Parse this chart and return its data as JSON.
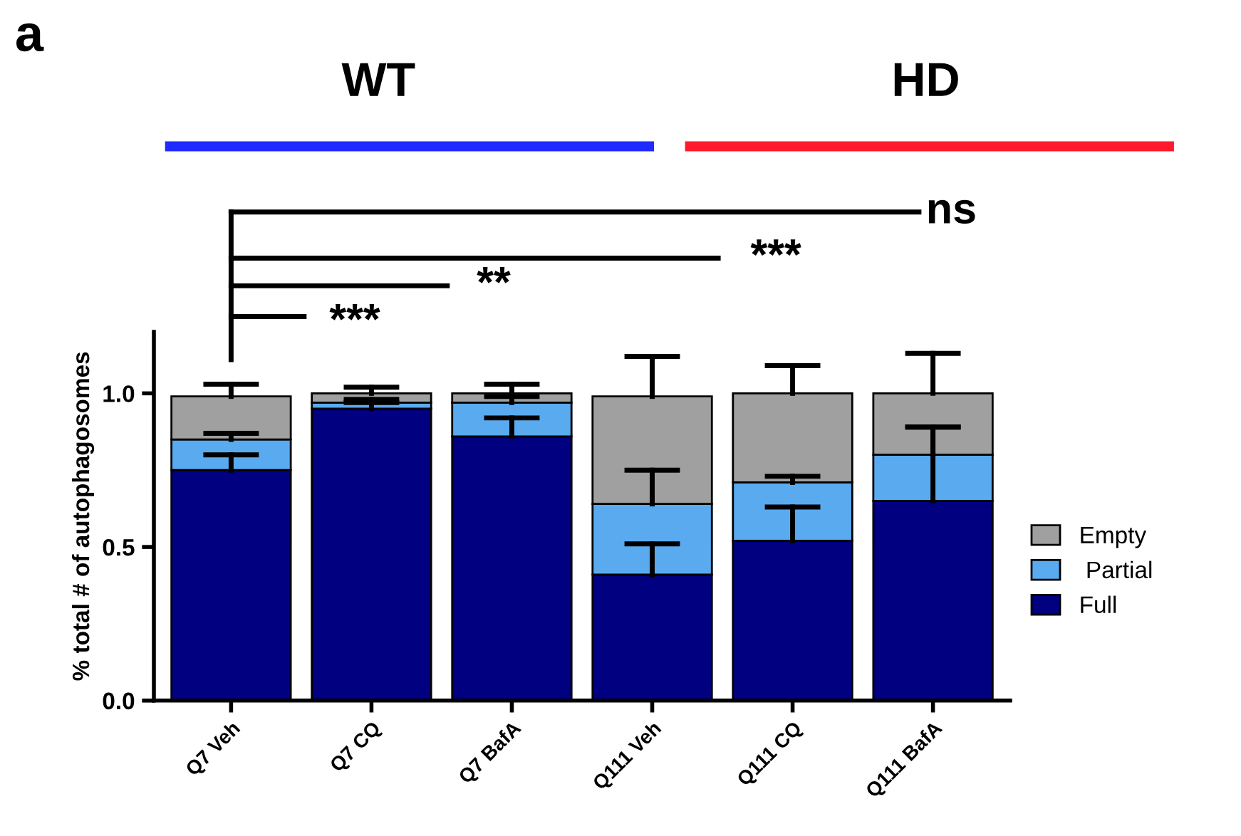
{
  "chart_data": {
    "type": "bar",
    "stacked": true,
    "ylabel": "% total # of autophagosomes",
    "categories": [
      "Q7 Veh",
      "Q7 CQ",
      "Q7 BafA",
      "Q111 Veh",
      "Q111 CQ",
      "Q111 BafA"
    ],
    "series": [
      {
        "name": "Full",
        "color": "#000080",
        "values": [
          0.75,
          0.95,
          0.86,
          0.41,
          0.52,
          0.65
        ],
        "errors": [
          [
            0.75,
            0.8
          ],
          [
            0.95,
            0.97
          ],
          [
            0.86,
            0.92
          ],
          [
            0.41,
            0.51
          ],
          [
            0.52,
            0.63
          ],
          [
            0.65,
            0.89
          ]
        ]
      },
      {
        "name": " Partial",
        "color": "#5aaaf0",
        "values": [
          0.1,
          0.02,
          0.11,
          0.23,
          0.19,
          0.15
        ],
        "errors": [
          [
            0.85,
            0.87
          ],
          [
            0.97,
            0.98
          ],
          [
            0.97,
            0.99
          ],
          [
            0.64,
            0.75
          ],
          [
            0.71,
            0.73
          ],
          [
            0.8,
            0.89
          ]
        ]
      },
      {
        "name": "Empty",
        "color": "#a0a0a0",
        "values": [
          0.14,
          0.03,
          0.03,
          0.35,
          0.29,
          0.2
        ],
        "errors": [
          [
            0.99,
            1.03
          ],
          [
            1.0,
            1.02
          ],
          [
            1.0,
            1.03
          ],
          [
            0.99,
            1.12
          ],
          [
            1.0,
            1.09
          ],
          [
            1.0,
            1.13
          ]
        ]
      }
    ],
    "ylim": [
      0,
      1.2
    ],
    "yticks": [
      {
        "value": 0,
        "label": "0.0"
      },
      {
        "value": 0.5,
        "label": "0.5"
      },
      {
        "value": 1,
        "label": "1.0"
      }
    ],
    "grid": false,
    "legend": "right",
    "annotations": [
      "a",
      "WT",
      "HD",
      "ns",
      "***",
      "**",
      "***"
    ]
  }
}
